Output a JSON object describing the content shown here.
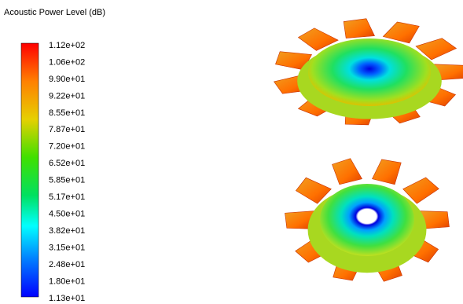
{
  "title": "Acoustic Power Level (dB)",
  "colorbar": {
    "labels": [
      "1.12e+02",
      "1.06e+02",
      "9.90e+01",
      "9.22e+01",
      "8.55e+01",
      "7.87e+01",
      "7.20e+01",
      "6.52e+01",
      "5.85e+01",
      "5.17e+01",
      "4.50e+01",
      "3.82e+01",
      "3.15e+01",
      "2.48e+01",
      "1.80e+01",
      "1.13e+01"
    ]
  }
}
